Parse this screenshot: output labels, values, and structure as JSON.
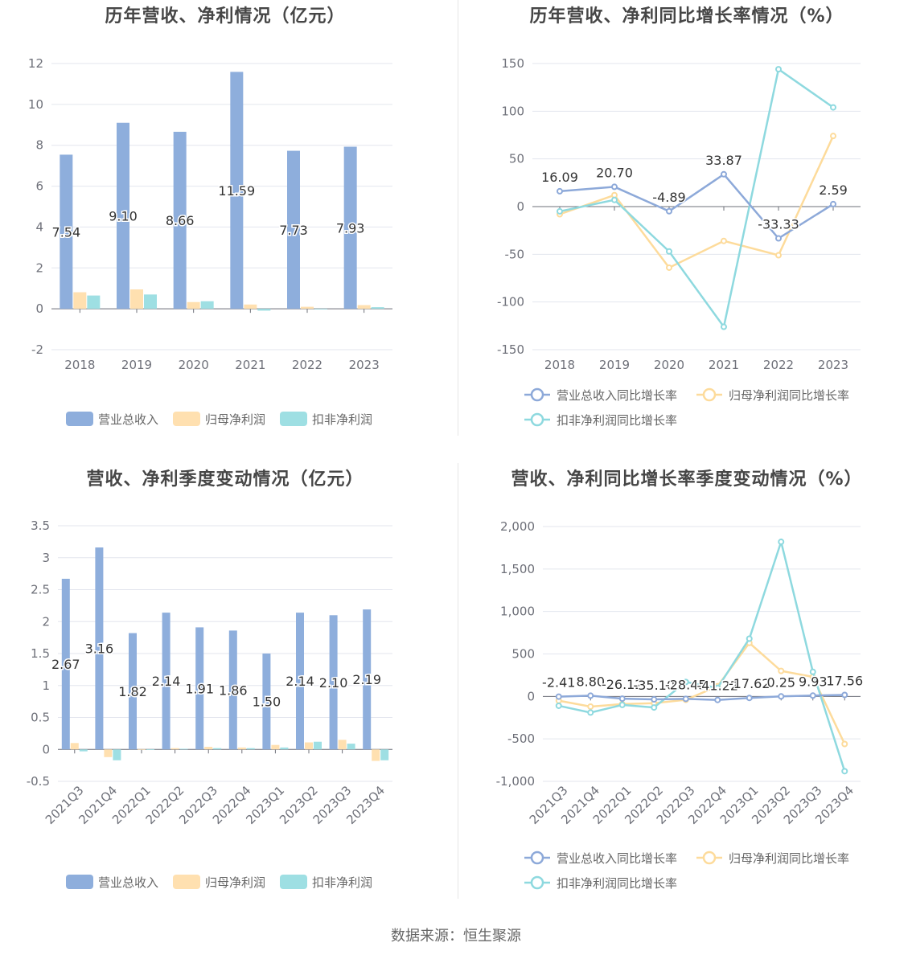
{
  "source_text": "数据来源：恒生聚源",
  "colors": {
    "revenue": "#8eaedc",
    "net_profit": "#ffe0b0",
    "deducted": "#9edfe3",
    "revenue_line": "#8da9d9",
    "net_line": "#fddb9b",
    "deducted_line": "#8ed9df"
  },
  "chart_data": [
    {
      "type": "bar",
      "title": "历年营收、净利情况（亿元）",
      "categories": [
        "2018",
        "2019",
        "2020",
        "2021",
        "2022",
        "2023"
      ],
      "ylim": [
        -2,
        12
      ],
      "yticks": [
        "-2",
        "0",
        "2",
        "4",
        "6",
        "8",
        "10",
        "12"
      ],
      "yticks_values": [
        -2,
        0,
        2,
        4,
        6,
        8,
        10,
        12
      ],
      "series": [
        {
          "name": "营业总收入",
          "values": [
            7.54,
            9.1,
            8.66,
            11.59,
            7.73,
            7.93
          ],
          "labels": [
            "7.54",
            "9.10",
            "8.66",
            "11.59",
            "7.73",
            "7.93"
          ]
        },
        {
          "name": "归母净利润",
          "values": [
            0.81,
            0.95,
            0.33,
            0.21,
            0.1,
            0.18
          ]
        },
        {
          "name": "扣非净利润",
          "values": [
            0.65,
            0.7,
            0.37,
            -0.09,
            -0.03,
            0.08
          ]
        }
      ],
      "legend": "bottom"
    },
    {
      "type": "line",
      "title": "历年营收、净利同比增长率情况（%）",
      "categories": [
        "2018",
        "2019",
        "2020",
        "2021",
        "2022",
        "2023"
      ],
      "ylim": [
        -150,
        150
      ],
      "yticks": [
        "-150",
        "-100",
        "-50",
        "0",
        "50",
        "100",
        "150"
      ],
      "yticks_values": [
        -150,
        -100,
        -50,
        0,
        50,
        100,
        150
      ],
      "series": [
        {
          "name": "营业总收入同比增长率",
          "values": [
            16.09,
            20.7,
            -4.89,
            33.87,
            -33.33,
            2.59
          ],
          "labels": [
            "16.09",
            "20.70",
            "-4.89",
            "33.87",
            "-33.33",
            "2.59"
          ]
        },
        {
          "name": "归母净利润同比增长率",
          "values": [
            -8,
            12,
            -64,
            -36,
            -51,
            74
          ]
        },
        {
          "name": "扣非净利润同比增长率",
          "values": [
            -5,
            7,
            -47,
            -126,
            144,
            104
          ]
        }
      ],
      "legend": "bottom"
    },
    {
      "type": "bar",
      "title": "营收、净利季度变动情况（亿元）",
      "categories": [
        "2021Q3",
        "2021Q4",
        "2022Q1",
        "2022Q2",
        "2022Q3",
        "2022Q4",
        "2023Q1",
        "2023Q2",
        "2023Q3",
        "2023Q4"
      ],
      "ylim": [
        -0.5,
        3.5
      ],
      "yticks": [
        "-0.5",
        "0",
        "0.5",
        "1",
        "1.5",
        "2",
        "2.5",
        "3",
        "3.5"
      ],
      "yticks_values": [
        -0.5,
        0,
        0.5,
        1,
        1.5,
        2,
        2.5,
        3,
        3.5
      ],
      "series": [
        {
          "name": "营业总收入",
          "values": [
            2.67,
            3.16,
            1.82,
            2.14,
            1.91,
            1.86,
            1.5,
            2.14,
            2.1,
            2.19
          ],
          "labels": [
            "2.67",
            "3.16",
            "1.82",
            "2.14",
            "1.91",
            "1.86",
            "1.50",
            "2.14",
            "2.10",
            "2.19"
          ]
        },
        {
          "name": "归母净利润",
          "values": [
            0.1,
            -0.12,
            0.005,
            0.02,
            0.04,
            0.03,
            0.07,
            0.11,
            0.15,
            -0.18
          ]
        },
        {
          "name": "扣非净利润",
          "values": [
            -0.03,
            -0.17,
            0.003,
            0.01,
            0.02,
            0.02,
            0.03,
            0.12,
            0.09,
            -0.17
          ]
        }
      ],
      "legend": "bottom"
    },
    {
      "type": "line",
      "title": "营收、净利同比增长率季度变动情况（%）",
      "categories": [
        "2021Q3",
        "2021Q4",
        "2022Q1",
        "2022Q2",
        "2022Q3",
        "2022Q4",
        "2023Q1",
        "2023Q2",
        "2023Q3",
        "2023Q4"
      ],
      "ylim": [
        -1000,
        2000
      ],
      "yticks": [
        "-1,000",
        "-500",
        "0",
        "500",
        "1,000",
        "1,500",
        "2,000"
      ],
      "yticks_values": [
        -1000,
        -500,
        0,
        500,
        1000,
        1500,
        2000
      ],
      "series": [
        {
          "name": "营业总收入同比增长率",
          "values": [
            -2.41,
            8.8,
            -26.12,
            -35.1,
            -28.45,
            -41.22,
            -17.62,
            0.25,
            9.93,
            17.56
          ],
          "labels": [
            "-2.41",
            "8.80",
            "-26.12",
            "-35.10",
            "-28.45",
            "-41.22",
            "-17.62",
            "0.25",
            "9.93",
            "17.56"
          ]
        },
        {
          "name": "归母净利润同比增长率",
          "values": [
            -50,
            -120,
            -90,
            -80,
            -40,
            120,
            630,
            300,
            230,
            -560
          ]
        },
        {
          "name": "扣非净利润同比增长率",
          "values": [
            -110,
            -190,
            -100,
            -130,
            170,
            100,
            680,
            1820,
            290,
            -880
          ]
        }
      ],
      "legend": "bottom"
    }
  ]
}
